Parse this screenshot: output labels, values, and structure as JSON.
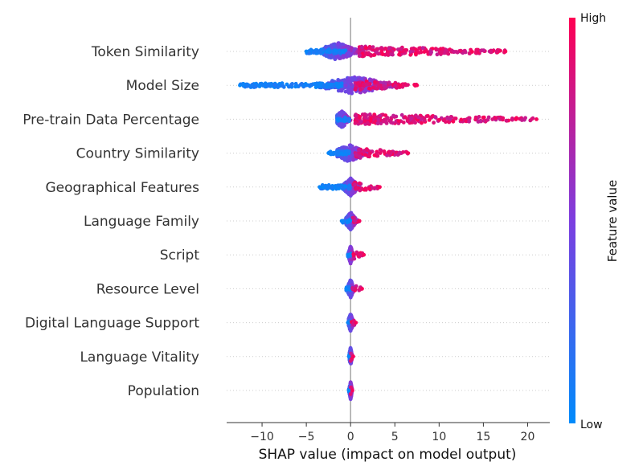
{
  "chart_data": {
    "type": "scatter",
    "subtype": "shap-beeswarm",
    "title": "",
    "xlabel": "SHAP value (impact on model output)",
    "ylabel": "",
    "xlim": [
      -14,
      22.5
    ],
    "xticks": [
      -10,
      -5,
      0,
      5,
      10,
      15,
      20
    ],
    "xtick_labels": [
      "−10",
      "−5",
      "0",
      "5",
      "10",
      "15",
      "20"
    ],
    "grid": false,
    "colorbar": {
      "label": "Feature value",
      "high_label": "High",
      "low_label": "Low",
      "low_color": "#008bfb",
      "mid_color": "#7c3ee0",
      "high_color": "#ff0052"
    },
    "features": [
      {
        "name": "Token Similarity",
        "min": -5,
        "max": 17.5,
        "dense_lo": -3,
        "dense_hi": 1.5,
        "core": -1.5,
        "low_range": [
          -5,
          -0.5
        ],
        "high_range": [
          1,
          17.5
        ]
      },
      {
        "name": "Model Size",
        "min": -12.5,
        "max": 7.5,
        "dense_lo": -3.5,
        "dense_hi": 5,
        "core": 0.5,
        "low_range": [
          -12.5,
          -1
        ],
        "high_range": [
          0.5,
          7.5
        ]
      },
      {
        "name": "Pre-train Data Percentage",
        "min": -1.5,
        "max": 21,
        "dense_lo": -1.5,
        "dense_hi": 0,
        "core": -1,
        "low_range": [
          -1.5,
          0
        ],
        "high_range": [
          0.5,
          21
        ]
      },
      {
        "name": "Country Similarity",
        "min": -2.5,
        "max": 6.5,
        "dense_lo": -1.5,
        "dense_hi": 2,
        "core": -0.2,
        "low_range": [
          -2.5,
          0
        ],
        "high_range": [
          0.5,
          6.5
        ]
      },
      {
        "name": "Geographical Features",
        "min": -3.5,
        "max": 3.3,
        "dense_lo": -0.8,
        "dense_hi": 1,
        "core": 0,
        "low_range": [
          -3.5,
          0
        ],
        "high_range": [
          0.3,
          3.3
        ]
      },
      {
        "name": "Language Family",
        "min": -1,
        "max": 1,
        "dense_lo": -0.5,
        "dense_hi": 0.8,
        "core": 0,
        "low_range": [
          -1,
          0
        ],
        "high_range": [
          0.2,
          1
        ]
      },
      {
        "name": "Script",
        "min": -0.3,
        "max": 1.5,
        "dense_lo": -0.3,
        "dense_hi": 0.2,
        "core": 0,
        "low_range": [
          -0.3,
          0.1
        ],
        "high_range": [
          0.3,
          1.5
        ]
      },
      {
        "name": "Resource Level",
        "min": -0.5,
        "max": 1.3,
        "dense_lo": -0.3,
        "dense_hi": 0.5,
        "core": 0,
        "low_range": [
          -0.5,
          0
        ],
        "high_range": [
          0.2,
          1.3
        ]
      },
      {
        "name": "Digital Language Support",
        "min": -0.3,
        "max": 0.6,
        "dense_lo": -0.2,
        "dense_hi": 0.4,
        "core": 0,
        "low_range": [
          -0.3,
          0
        ],
        "high_range": [
          0.1,
          0.6
        ]
      },
      {
        "name": "Language Vitality",
        "min": -0.2,
        "max": 0.3,
        "dense_lo": -0.1,
        "dense_hi": 0.2,
        "core": 0,
        "low_range": [
          -0.2,
          0
        ],
        "high_range": [
          0,
          0.3
        ]
      },
      {
        "name": "Population",
        "min": -0.2,
        "max": 0.2,
        "dense_lo": -0.15,
        "dense_hi": 0.15,
        "core": 0,
        "low_range": [
          -0.2,
          0
        ],
        "high_range": [
          0,
          0.2
        ]
      }
    ]
  }
}
